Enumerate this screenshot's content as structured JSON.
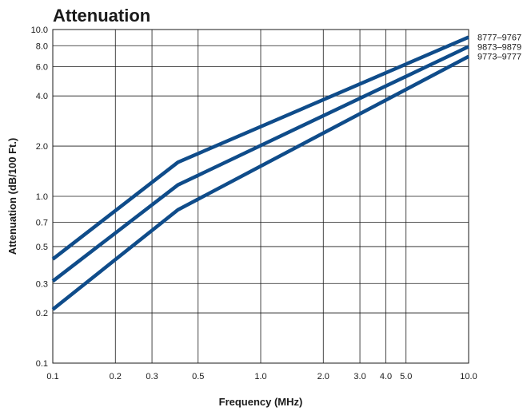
{
  "chart_data": {
    "type": "line",
    "title": "Attenuation",
    "xlabel": "Frequency (MHz)",
    "ylabel": "Attenuation (dB/100 Ft.)",
    "x_scale": "log",
    "y_scale": "log",
    "xlim": [
      0.1,
      10.0
    ],
    "ylim": [
      0.1,
      10.0
    ],
    "x_ticks": [
      "0.1",
      "0.2",
      "0.3",
      "0.5",
      "1.0",
      "2.0",
      "3.0",
      "4.0",
      "5.0",
      "10.0"
    ],
    "x_tick_values": [
      0.1,
      0.2,
      0.3,
      0.5,
      1.0,
      2.0,
      3.0,
      4.0,
      5.0,
      10.0
    ],
    "y_ticks": [
      "0.1",
      "0.2",
      "0.3",
      "0.5",
      "0.7",
      "1.0",
      "2.0",
      "4.0",
      "6.0",
      "8.0",
      "10.0"
    ],
    "y_tick_values": [
      0.1,
      0.2,
      0.3,
      0.5,
      0.7,
      1.0,
      2.0,
      4.0,
      6.0,
      8.0,
      10.0
    ],
    "grid": true,
    "legend_position": "right",
    "line_color": "#0f4c8a",
    "series": [
      {
        "name": "8777–9767",
        "x": [
          0.1,
          0.4,
          10.0
        ],
        "y": [
          0.42,
          1.6,
          9.0
        ]
      },
      {
        "name": "9873–9879",
        "x": [
          0.1,
          0.4,
          10.0
        ],
        "y": [
          0.31,
          1.17,
          7.9
        ]
      },
      {
        "name": "9773–9777",
        "x": [
          0.1,
          0.4,
          10.0
        ],
        "y": [
          0.21,
          0.83,
          6.9
        ]
      }
    ]
  }
}
